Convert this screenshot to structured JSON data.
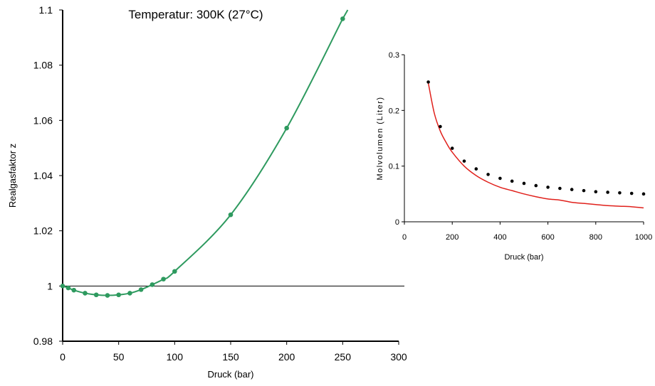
{
  "chart_data": [
    {
      "type": "line",
      "title": "Temperatur: 300K  (27°C)",
      "xlabel": "Druck (bar)",
      "ylabel": "Realgasfaktor z",
      "xlim": [
        0,
        300
      ],
      "ylim": [
        0.98,
        1.1
      ],
      "x_ticks": [
        "0",
        "50",
        "100",
        "150",
        "200",
        "250",
        "300"
      ],
      "y_ticks": [
        "0.98",
        "1",
        "1.02",
        "1.04",
        "1.06",
        "1.08",
        "1.1"
      ],
      "reference_line": 1,
      "grid": false,
      "colors": {
        "curve": "#2e9a5f",
        "points": "#2e9a5f",
        "reference": "#000000"
      },
      "series": [
        {
          "values_x": [
            0,
            5,
            10,
            20,
            30,
            40,
            50,
            60,
            70,
            80,
            90,
            100,
            150,
            200,
            250
          ],
          "values_y": [
            1.0,
            0.9993,
            0.9985,
            0.9974,
            0.9968,
            0.9966,
            0.9968,
            0.9974,
            0.9987,
            1.0005,
            1.0025,
            1.0053,
            1.0258,
            1.0572,
            1.0968
          ]
        }
      ]
    },
    {
      "type": "line",
      "xlabel": "Druck (bar)",
      "ylabel": "Molvolumen (Liter)",
      "xlim": [
        0,
        1000
      ],
      "ylim": [
        0,
        0.3
      ],
      "x_ticks": [
        "0",
        "200",
        "400",
        "600",
        "800",
        "1000"
      ],
      "y_ticks": [
        "0",
        "0.1",
        "0.2",
        "0.3"
      ],
      "grid": false,
      "colors": {
        "points": "#000000",
        "curve": "#e0201b"
      },
      "series": [
        {
          "style": "points",
          "x": [
            100,
            150,
            200,
            250,
            300,
            350,
            400,
            450,
            500,
            550,
            600,
            650,
            700,
            750,
            800,
            850,
            900,
            950,
            1000
          ],
          "y": [
            0.251,
            0.171,
            0.132,
            0.109,
            0.095,
            0.085,
            0.078,
            0.073,
            0.069,
            0.065,
            0.062,
            0.06,
            0.058,
            0.056,
            0.054,
            0.053,
            0.052,
            0.051,
            0.05
          ]
        },
        {
          "style": "line",
          "x": [
            100,
            125,
            150,
            175,
            200,
            250,
            300,
            350,
            400,
            450,
            500,
            550,
            600,
            650,
            700,
            750,
            800,
            850,
            900,
            950,
            1000
          ],
          "y": [
            0.249,
            0.195,
            0.163,
            0.142,
            0.125,
            0.1,
            0.083,
            0.071,
            0.062,
            0.056,
            0.05,
            0.045,
            0.041,
            0.039,
            0.035,
            0.033,
            0.031,
            0.029,
            0.028,
            0.027,
            0.025
          ]
        }
      ]
    }
  ]
}
